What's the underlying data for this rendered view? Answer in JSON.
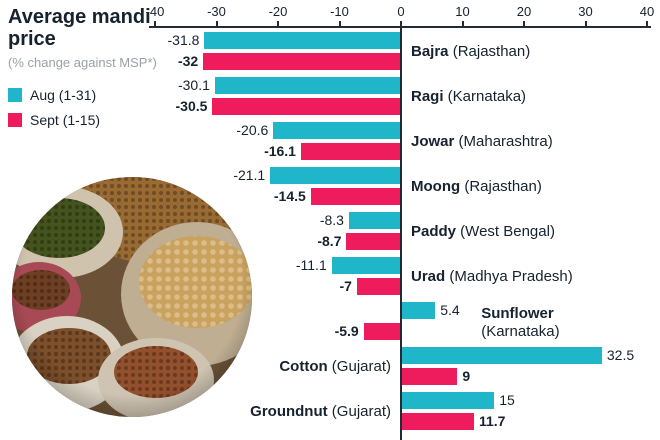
{
  "header": {
    "title": "Average mandi price",
    "subtitle": "(% change against MSP*)",
    "legend": [
      {
        "label": "Aug (1-31)",
        "color": "#1fb6c9"
      },
      {
        "label": "Sept (1-15)",
        "color": "#ee1c5d"
      }
    ]
  },
  "chart_data": {
    "type": "bar",
    "orientation": "horizontal",
    "title": "Average mandi price (% change against MSP*)",
    "series_names": [
      "Aug (1-31)",
      "Sept (1-15)"
    ],
    "colors": {
      "aug": "#1fb6c9",
      "sept": "#ee1c5d"
    },
    "axis": {
      "min": -40,
      "max": 40,
      "ticks": [
        "-40",
        "-30",
        "-20",
        "-10",
        "0",
        "10",
        "20",
        "30",
        "40"
      ]
    },
    "groups": [
      {
        "crop": "Bajra",
        "region": "(Rajasthan)",
        "aug": -31.8,
        "sept": -32,
        "aug_label": "-31.8",
        "sept_label": "-32",
        "label_side": "right"
      },
      {
        "crop": "Ragi",
        "region": "(Karnataka)",
        "aug": -30.1,
        "sept": -30.5,
        "aug_label": "-30.1",
        "sept_label": "-30.5",
        "label_side": "right"
      },
      {
        "crop": "Jowar",
        "region": "(Maharashtra)",
        "aug": -20.6,
        "sept": -16.1,
        "aug_label": "-20.6",
        "sept_label": "-16.1",
        "label_side": "right"
      },
      {
        "crop": "Moong",
        "region": "(Rajasthan)",
        "aug": -21.1,
        "sept": -14.5,
        "aug_label": "-21.1",
        "sept_label": "-14.5",
        "label_side": "right"
      },
      {
        "crop": "Paddy",
        "region": "(West Bengal)",
        "aug": -8.3,
        "sept": -8.7,
        "aug_label": "-8.3",
        "sept_label": "-8.7",
        "label_side": "right"
      },
      {
        "crop": "Urad",
        "region": "(Madhya Pradesh)",
        "aug": -11.1,
        "sept": -7,
        "aug_label": "-11.1",
        "sept_label": "-7",
        "label_side": "right"
      },
      {
        "crop": "Sunflower",
        "region": "(Karnataka)",
        "aug": 5.4,
        "sept": -5.9,
        "aug_label": "5.4",
        "sept_label": "-5.9",
        "label_side": "bar-right"
      },
      {
        "crop": "Cotton",
        "region": "(Gujarat)",
        "aug": 32.5,
        "sept": 9,
        "aug_label": "32.5",
        "sept_label": "9",
        "label_side": "left"
      },
      {
        "crop": "Groundnut",
        "region": "(Gujarat)",
        "aug": 15,
        "sept": 11.7,
        "aug_label": "15",
        "sept_label": "11.7",
        "label_side": "left"
      }
    ]
  }
}
